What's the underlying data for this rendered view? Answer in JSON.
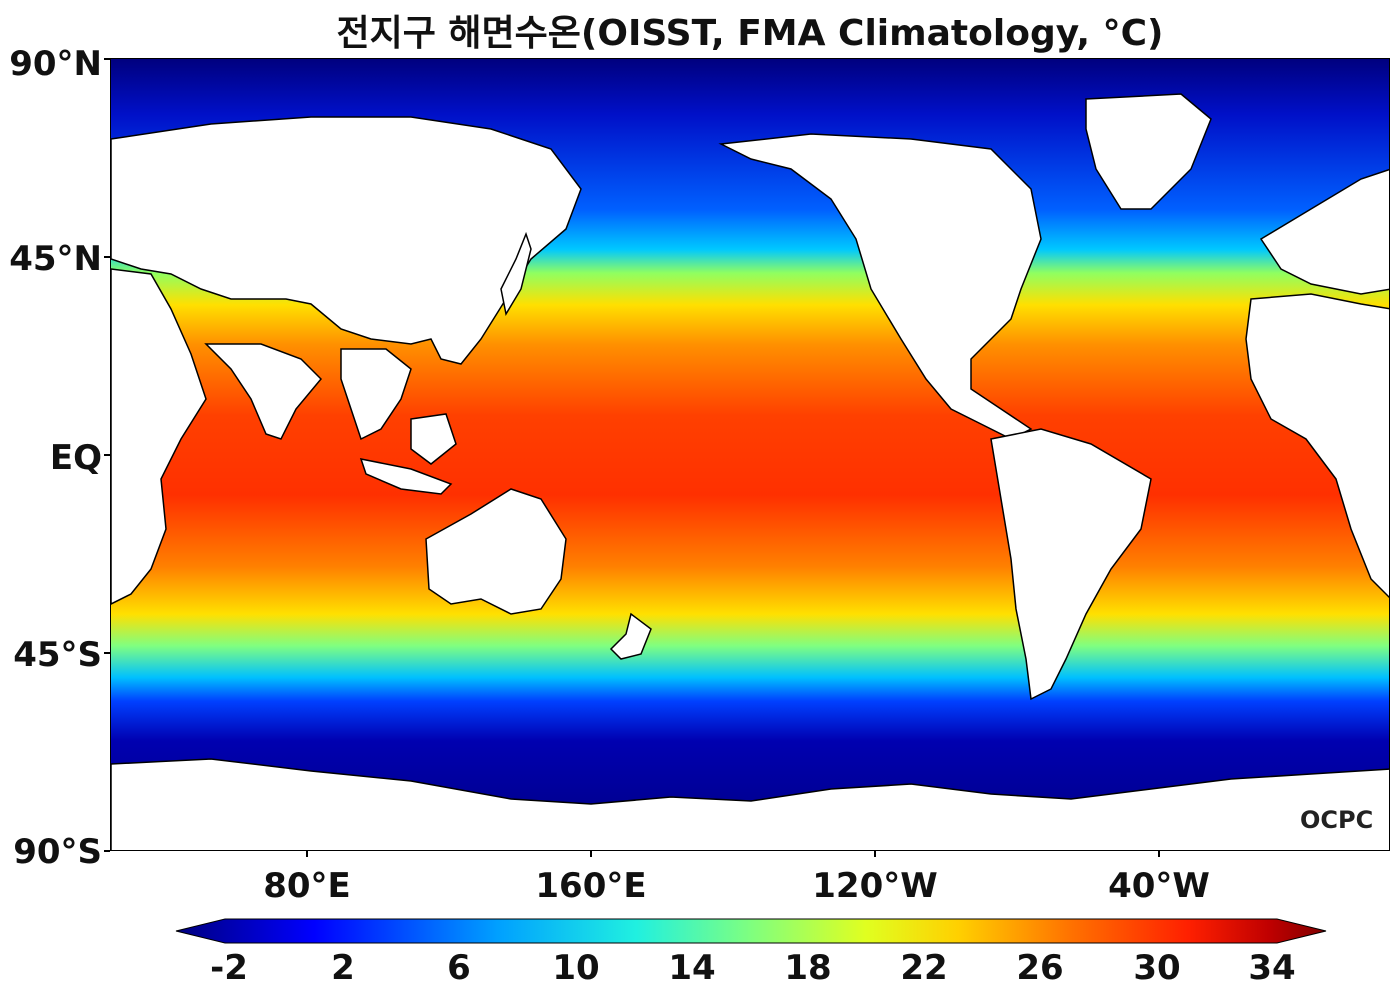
{
  "title": "전지구 해면수온(OISST, FMA Climatology, °C)",
  "map": {
    "lat_labels": [
      "90°N",
      "45°N",
      "EQ",
      "45°S",
      "90°S"
    ],
    "lon_labels": [
      "80°E",
      "160°E",
      "120°W",
      "40°W"
    ]
  },
  "colorbar": {
    "ticks": [
      "-2",
      "2",
      "6",
      "10",
      "14",
      "18",
      "22",
      "26",
      "30",
      "34"
    ],
    "colors": [
      "#00007f",
      "#0000ff",
      "#00a0ff",
      "#20f0e0",
      "#7fff7f",
      "#e0ff20",
      "#ffd000",
      "#ff7000",
      "#ff2000",
      "#c00000",
      "#800000"
    ]
  },
  "logo": "OCPC"
}
